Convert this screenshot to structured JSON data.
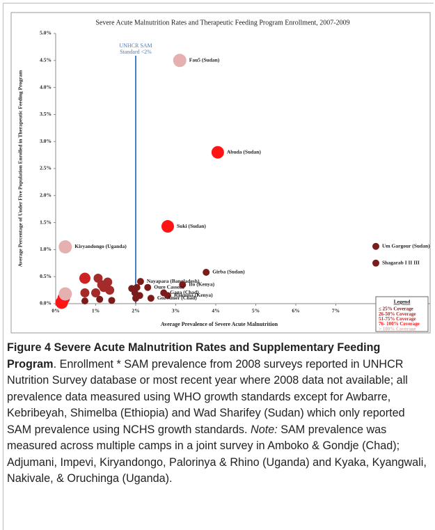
{
  "chart_data": {
    "type": "scatter",
    "title": "Severe Acute Malnutrition Rates and Therapeutic Feeding Program Enrollment, 2007-2009",
    "x_label": "Average Prevalence of Severe Acute Malnutrition",
    "y_label": "Average Percentage of Under Five Population Enrolled in Therapeutic Feeding Program",
    "xlim": [
      0,
      8
    ],
    "xticks": [
      {
        "value": 0,
        "label": "0%"
      },
      {
        "value": 1,
        "label": "1%"
      },
      {
        "value": 2,
        "label": "2%"
      },
      {
        "value": 3,
        "label": "3%"
      },
      {
        "value": 4,
        "label": "4%"
      },
      {
        "value": 5,
        "label": "5%"
      },
      {
        "value": 6,
        "label": "6%"
      },
      {
        "value": 7,
        "label": "7%"
      }
    ],
    "ylim": [
      0,
      5
    ],
    "yticks": [
      {
        "value": 0,
        "label": "0.0%"
      },
      {
        "value": 0.5,
        "label": "0.5%"
      },
      {
        "value": 1,
        "label": "1.0%"
      },
      {
        "value": 1.5,
        "label": "1.5%"
      },
      {
        "value": 2,
        "label": "2.0%"
      },
      {
        "value": 2.5,
        "label": "2.5%"
      },
      {
        "value": 3,
        "label": "3.0%"
      },
      {
        "value": 3.5,
        "label": "3.5%"
      },
      {
        "value": 4,
        "label": "4.0%"
      },
      {
        "value": 4.5,
        "label": "4.5%"
      },
      {
        "value": 5,
        "label": "5.0%"
      }
    ],
    "grid": false,
    "reference_line": {
      "x": 2,
      "color": "#4a7cc4",
      "label": [
        "UNHCR SAM",
        "Standard <2%"
      ]
    },
    "legend_title": "Legend",
    "legend_position": "lower right",
    "series": [
      {
        "name": "≤ 25%  Coverage",
        "color": "#7a1c1c",
        "x": [
          8.0,
          8.0,
          3.76,
          2.12,
          3.17,
          2.3,
          2.7,
          2.8,
          2.38,
          1.9,
          2.03,
          1.98,
          2.1,
          2.0,
          1.4,
          1.1,
          0.73
        ],
        "values": [
          1.06,
          0.75,
          0.58,
          0.41,
          0.35,
          0.3,
          0.2,
          0.15,
          0.1,
          0.28,
          0.3,
          0.2,
          0.15,
          0.1,
          0.06,
          0.08,
          0.05
        ],
        "labels": [
          "Um Gargour (Sudan)",
          "Shagarab I II III",
          "Girba (Sudan)",
          "Nayapara (Bangladesh)",
          "Ifo (Kenya)",
          "Oure Cassoni",
          "Gaga (Chad)",
          "Kakuma (Kenya)",
          "Goz Amer (Chad)",
          null,
          null,
          null,
          null,
          null,
          null,
          null,
          null
        ]
      },
      {
        "name": "26-50% Coverage",
        "color": "#a52a2a",
        "x": [
          1.06,
          1.15,
          1.3,
          1.2,
          0.73,
          1.0,
          1.35
        ],
        "values": [
          0.47,
          0.35,
          0.4,
          0.3,
          0.2,
          0.2,
          0.25
        ],
        "labels": [
          null,
          null,
          null,
          null,
          null,
          null,
          null
        ]
      },
      {
        "name": "51-75% Coverage",
        "color": "#cc2222",
        "x": [
          0.73
        ],
        "values": [
          0.47
        ],
        "labels": [
          null
        ]
      },
      {
        "name": "76- 100% Coverage",
        "color": "#ff1414",
        "x": [
          4.05,
          2.8,
          0.2,
          0.15
        ],
        "values": [
          2.8,
          1.43,
          0.1,
          0.02
        ],
        "labels": [
          "Abuda (Sudan)",
          "Suki (Sudan)",
          null,
          null
        ]
      },
      {
        "name": "> 100% Coverage",
        "color": "#e6b0b0",
        "x": [
          3.1,
          0.24,
          0.24
        ],
        "values": [
          4.5,
          1.05,
          0.18
        ],
        "labels": [
          "Fau5 (Sudan)",
          "Kiryandongo (Uganda)",
          null
        ]
      }
    ]
  },
  "caption": {
    "label": "Figure 4",
    "title": "Severe Acute Malnutrition Rates and Supplementary Feeding Program",
    "text": ". Enrollment * SAM prevalence from 2008 surveys reported in UNHCR Nutrition Survey database or most recent year where 2008 data not available; all prevalence data measured using WHO growth standards except for Awbarre, Kebribeyah, Shimelba (Ethiopia) and Wad Sharifey (Sudan) which only reported SAM prevalence using NCHS growth standards. ",
    "note_label": "Note:",
    "note": " SAM prevalence was measured across multiple camps in a joint survey in Amboko & Gondje (Chad); Adjumani, Impevi, Kiryandongo, Palorinya & Rhino (Uganda) and Kyaka, Kyangwali, Nakivale, & Oruchinga (Uganda)."
  }
}
